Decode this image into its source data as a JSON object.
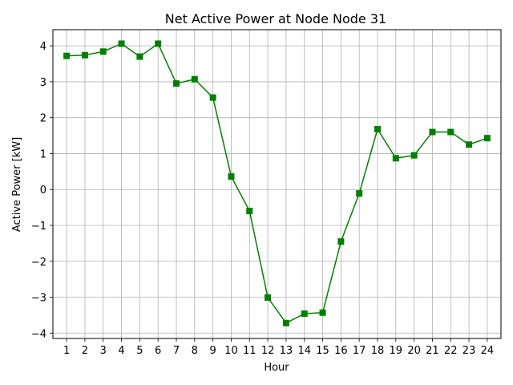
{
  "chart_data": {
    "type": "line",
    "title": "Net Active Power at Node Node 31",
    "xlabel": "Hour",
    "ylabel": "Active Power [kW]",
    "x": [
      1,
      2,
      3,
      4,
      5,
      6,
      7,
      8,
      9,
      10,
      11,
      12,
      13,
      14,
      15,
      16,
      17,
      18,
      19,
      20,
      21,
      22,
      23,
      24
    ],
    "y_ticks": [
      4,
      3,
      2,
      1,
      0,
      -1,
      -2,
      -3,
      -4
    ],
    "y_tick_labels": [
      "4",
      "3",
      "2",
      "1",
      "0",
      "−1",
      "−2",
      "−3",
      "−4"
    ],
    "xlim": [
      0.25,
      24.75
    ],
    "ylim": [
      -4.15,
      4.45
    ],
    "grid": true,
    "series": [
      {
        "color": "#008000",
        "marker": "square",
        "values": [
          3.72,
          3.74,
          3.84,
          4.06,
          3.7,
          4.06,
          2.95,
          3.07,
          2.56,
          0.36,
          -0.6,
          -3.01,
          -3.72,
          -3.46,
          -3.43,
          -1.45,
          -0.11,
          1.68,
          0.87,
          0.95,
          1.6,
          1.6,
          1.25,
          1.43
        ]
      }
    ]
  }
}
